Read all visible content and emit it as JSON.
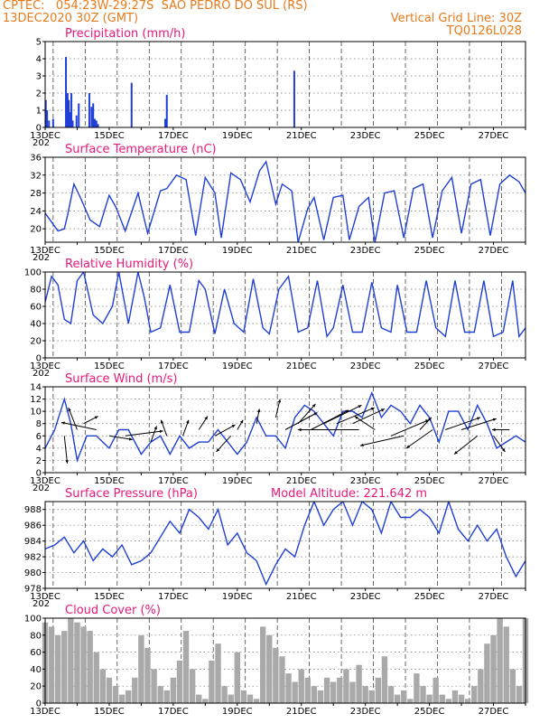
{
  "header": {
    "line1_left": "CPTEC:   054:23W-29:27S  SAO PEDRO DO SUL (RS)",
    "line2_left": "13DEC2020 30Z (GMT)",
    "line2_right": "Vertical Grid Line: 30Z",
    "line3_right": "TQ0126L028"
  },
  "colors": {
    "header": "#e87a1a",
    "title": "#e8197a",
    "series": "#1f3fd6",
    "cloud": "#a9a9a9"
  },
  "x_axis": {
    "ticks": [
      "13DEC",
      "15DEC",
      "17DEC",
      "19DEC",
      "21DEC",
      "23DEC",
      "25DEC",
      "27DEC"
    ],
    "start_day": 13,
    "end_day": 28,
    "cut_label": "202"
  },
  "chart_data": [
    {
      "type": "bar",
      "title": "Precipitation (mm/h)",
      "ylim": [
        0,
        5
      ],
      "yticks": [
        0,
        1,
        2,
        3,
        4,
        5
      ],
      "x": [
        13.02,
        13.06,
        13.12,
        13.25,
        13.65,
        13.7,
        13.74,
        13.78,
        13.82,
        13.86,
        13.98,
        14.05,
        14.38,
        14.45,
        14.5,
        14.55,
        14.6,
        14.65,
        15.7,
        16.75,
        16.8,
        20.78
      ],
      "values": [
        1.6,
        1.0,
        0.4,
        0.5,
        4.1,
        2.0,
        1.6,
        0.9,
        2.0,
        0.4,
        0.7,
        1.4,
        2.0,
        1.2,
        1.4,
        0.5,
        0.4,
        0.2,
        2.6,
        0.5,
        1.9,
        3.3
      ]
    },
    {
      "type": "line",
      "title": "Surface Temperature (nC)",
      "ylim": [
        17,
        36
      ],
      "yticks": [
        20,
        24,
        28,
        32,
        36
      ],
      "x": [
        13.0,
        13.2,
        13.4,
        13.6,
        13.7,
        13.9,
        14.1,
        14.4,
        14.7,
        15.0,
        15.2,
        15.5,
        15.9,
        16.2,
        16.6,
        16.8,
        17.1,
        17.4,
        17.7,
        18.0,
        18.3,
        18.5,
        18.8,
        19.1,
        19.4,
        19.7,
        19.9,
        20.2,
        20.4,
        20.7,
        20.9,
        21.2,
        21.4,
        21.7,
        22.0,
        22.3,
        22.5,
        22.8,
        23.1,
        23.3,
        23.6,
        23.9,
        24.2,
        24.5,
        24.8,
        25.1,
        25.4,
        25.7,
        26.0,
        26.3,
        26.6,
        26.9,
        27.2,
        27.5,
        27.8,
        28.0
      ],
      "values": [
        23.5,
        21.5,
        19.5,
        20.0,
        23.0,
        30.0,
        27.0,
        22.0,
        20.5,
        27.5,
        25.0,
        19.5,
        28.0,
        19.0,
        28.5,
        29.0,
        32.0,
        31.0,
        18.5,
        31.5,
        28.0,
        18.0,
        32.5,
        31.0,
        26.0,
        33.0,
        35.0,
        25.5,
        30.0,
        28.5,
        17.0,
        24.5,
        27.0,
        17.5,
        27.0,
        27.5,
        17.5,
        25.0,
        27.0,
        17.0,
        28.0,
        28.5,
        18.0,
        29.0,
        30.0,
        18.0,
        28.5,
        31.5,
        19.0,
        30.0,
        31.0,
        18.5,
        30.0,
        32.0,
        30.5,
        28.0
      ]
    },
    {
      "type": "line",
      "title": "Relative Humidity (%)",
      "ylim": [
        0,
        100
      ],
      "yticks": [
        0,
        20,
        40,
        60,
        80,
        100
      ],
      "x": [
        13.0,
        13.2,
        13.4,
        13.6,
        13.8,
        14.0,
        14.2,
        14.5,
        14.8,
        15.1,
        15.3,
        15.6,
        15.9,
        16.1,
        16.3,
        16.6,
        16.9,
        17.2,
        17.5,
        17.8,
        18.0,
        18.3,
        18.6,
        18.9,
        19.2,
        19.5,
        19.8,
        20.0,
        20.3,
        20.6,
        20.9,
        21.2,
        21.5,
        21.8,
        22.0,
        22.3,
        22.6,
        22.9,
        23.2,
        23.5,
        23.8,
        24.0,
        24.3,
        24.6,
        24.9,
        25.2,
        25.5,
        25.8,
        26.1,
        26.4,
        26.7,
        27.0,
        27.3,
        27.6,
        27.8,
        28.0
      ],
      "values": [
        65,
        95,
        85,
        45,
        40,
        90,
        100,
        50,
        40,
        60,
        100,
        40,
        100,
        70,
        30,
        35,
        85,
        30,
        30,
        90,
        80,
        28,
        80,
        40,
        30,
        92,
        35,
        28,
        80,
        95,
        30,
        35,
        90,
        25,
        35,
        85,
        30,
        30,
        88,
        35,
        30,
        85,
        30,
        30,
        90,
        35,
        25,
        90,
        30,
        30,
        90,
        25,
        30,
        90,
        25,
        35
      ]
    },
    {
      "type": "line",
      "title": "Surface Wind (m/s)",
      "ylim": [
        0,
        14
      ],
      "yticks": [
        0,
        2,
        4,
        6,
        8,
        10,
        12,
        14
      ],
      "x": [
        13.0,
        13.3,
        13.6,
        13.8,
        14.0,
        14.3,
        14.6,
        15.0,
        15.3,
        15.6,
        16.0,
        16.3,
        16.6,
        16.9,
        17.2,
        17.5,
        17.8,
        18.1,
        18.4,
        18.7,
        19.0,
        19.3,
        19.6,
        19.9,
        20.2,
        20.5,
        20.8,
        21.1,
        21.4,
        21.7,
        22.0,
        22.3,
        22.6,
        22.9,
        23.2,
        23.5,
        23.8,
        24.1,
        24.4,
        24.7,
        25.0,
        25.3,
        25.6,
        25.9,
        26.2,
        26.5,
        26.8,
        27.1,
        27.4,
        27.7,
        28.0
      ],
      "values": [
        4,
        7,
        12,
        8,
        2,
        6,
        6,
        4,
        7,
        7,
        3,
        5,
        6,
        3,
        6,
        4,
        5,
        5,
        7,
        5,
        3,
        5,
        9,
        6,
        6,
        4,
        9,
        11,
        10,
        8,
        6,
        10,
        10,
        9,
        13,
        9,
        11,
        10,
        8,
        11,
        9,
        5,
        10,
        10,
        7,
        11,
        8,
        4,
        5,
        6,
        5
      ],
      "vectors": [
        {
          "d": 13.6,
          "v": 6,
          "u": 0.2,
          "w": -4.5
        },
        {
          "d": 14.0,
          "v": 7,
          "u": -0.6,
          "w": 3.6
        },
        {
          "d": 14.2,
          "v": 8,
          "u": 1.0,
          "w": 1.2
        },
        {
          "d": 14.6,
          "v": 7,
          "u": -2.4,
          "w": 1.2
        },
        {
          "d": 15.0,
          "v": 6,
          "u": 1.6,
          "w": -0.6
        },
        {
          "d": 15.5,
          "v": 6,
          "u": 2.6,
          "w": 0.8
        },
        {
          "d": 16.3,
          "v": 5,
          "u": 0.4,
          "w": 2.6
        },
        {
          "d": 16.8,
          "v": 6,
          "u": -0.4,
          "w": 2.6
        },
        {
          "d": 17.3,
          "v": 6,
          "u": 0.4,
          "w": 2.6
        },
        {
          "d": 17.8,
          "v": 7,
          "u": 0.6,
          "w": 2.2
        },
        {
          "d": 18.3,
          "v": 6,
          "u": 1.4,
          "w": 1.8
        },
        {
          "d": 18.8,
          "v": 6,
          "u": -1.0,
          "w": -2.6
        },
        {
          "d": 19.0,
          "v": 7,
          "u": 0.4,
          "w": 1.6
        },
        {
          "d": 19.6,
          "v": 8,
          "u": 0.2,
          "w": 2.4
        },
        {
          "d": 20.2,
          "v": 9,
          "u": 0.3,
          "w": 3.0
        },
        {
          "d": 20.5,
          "v": 7,
          "u": 2.2,
          "w": 2.8
        },
        {
          "d": 20.9,
          "v": 8,
          "u": 1.2,
          "w": 3.2
        },
        {
          "d": 21.3,
          "v": 7,
          "u": 2.6,
          "w": 3.2
        },
        {
          "d": 21.7,
          "v": 8,
          "u": 2.6,
          "w": 3.0
        },
        {
          "d": 22.1,
          "v": 8,
          "u": 2.6,
          "w": 2.6
        },
        {
          "d": 22.6,
          "v": 8,
          "u": 2.2,
          "w": 2.4
        },
        {
          "d": 22.8,
          "v": 7,
          "u": -4.2,
          "w": 0.0
        },
        {
          "d": 23.3,
          "v": 7,
          "u": -1.4,
          "w": 2.2
        },
        {
          "d": 23.8,
          "v": 6,
          "u": 2.6,
          "w": 2.6
        },
        {
          "d": 24.2,
          "v": 6,
          "u": -3.0,
          "w": -1.6
        },
        {
          "d": 24.7,
          "v": 7,
          "u": 0.8,
          "w": 2.0
        },
        {
          "d": 25.1,
          "v": 7,
          "u": -1.8,
          "w": -3.0
        },
        {
          "d": 25.5,
          "v": 7,
          "u": 2.4,
          "w": 2.0
        },
        {
          "d": 26.0,
          "v": 7,
          "u": 2.4,
          "w": 1.8
        },
        {
          "d": 26.5,
          "v": 6,
          "u": -1.6,
          "w": -3.0
        },
        {
          "d": 27.0,
          "v": 6,
          "u": 0.8,
          "w": -2.6
        },
        {
          "d": 27.5,
          "v": 7,
          "u": -1.2,
          "w": 0.0
        }
      ]
    },
    {
      "type": "line",
      "title": "Surface Pressure (hPa)",
      "annotation": "Model Altitude: 221.642 m",
      "ylim": [
        978,
        989
      ],
      "yticks": [
        978,
        980,
        982,
        984,
        986,
        988
      ],
      "x": [
        13.0,
        13.3,
        13.6,
        13.9,
        14.2,
        14.5,
        14.8,
        15.1,
        15.4,
        15.7,
        16.0,
        16.3,
        16.6,
        16.9,
        17.2,
        17.5,
        17.8,
        18.1,
        18.4,
        18.7,
        19.0,
        19.3,
        19.6,
        19.9,
        20.2,
        20.5,
        20.8,
        21.1,
        21.4,
        21.7,
        22.0,
        22.3,
        22.6,
        22.9,
        23.2,
        23.5,
        23.8,
        24.1,
        24.4,
        24.7,
        25.0,
        25.3,
        25.6,
        25.9,
        26.2,
        26.5,
        26.8,
        27.1,
        27.4,
        27.7,
        28.0
      ],
      "values": [
        983,
        983.5,
        984.5,
        982.5,
        984,
        981.5,
        983,
        982,
        983.5,
        981,
        981.5,
        982.5,
        984.5,
        986.5,
        985,
        988,
        987,
        985.5,
        988,
        983.5,
        985,
        982.5,
        981.5,
        978.5,
        981,
        983,
        982,
        986,
        989,
        986,
        988,
        989,
        986,
        989,
        988,
        985,
        989,
        987,
        987,
        988,
        987,
        985,
        989,
        985.5,
        984,
        986,
        984,
        985.5,
        982,
        979.5,
        981.5
      ]
    },
    {
      "type": "bar",
      "title": "Cloud Cover (%)",
      "ylim": [
        0,
        100
      ],
      "yticks": [
        0,
        20,
        40,
        60,
        80,
        100
      ],
      "x": [
        13.0,
        13.2,
        13.4,
        13.6,
        13.8,
        14.0,
        14.2,
        14.4,
        14.6,
        14.8,
        15.0,
        15.2,
        15.4,
        15.6,
        15.8,
        16.0,
        16.2,
        16.4,
        16.6,
        16.8,
        17.0,
        17.2,
        17.4,
        17.6,
        17.8,
        18.0,
        18.2,
        18.4,
        18.6,
        18.8,
        19.0,
        19.2,
        19.4,
        19.6,
        19.8,
        20.0,
        20.2,
        20.4,
        20.6,
        20.8,
        21.0,
        21.2,
        21.4,
        21.6,
        21.8,
        22.0,
        22.2,
        22.4,
        22.6,
        22.8,
        23.0,
        23.2,
        23.4,
        23.6,
        23.8,
        24.0,
        24.2,
        24.4,
        24.6,
        24.8,
        25.0,
        25.2,
        25.4,
        25.6,
        25.8,
        26.0,
        26.2,
        26.4,
        26.6,
        26.8,
        27.0,
        27.2,
        27.4,
        27.6,
        27.8,
        28.0
      ],
      "values": [
        95,
        90,
        80,
        85,
        100,
        95,
        90,
        85,
        60,
        40,
        30,
        20,
        10,
        15,
        30,
        80,
        65,
        40,
        20,
        15,
        30,
        50,
        85,
        40,
        10,
        5,
        50,
        70,
        20,
        10,
        60,
        15,
        10,
        5,
        90,
        80,
        65,
        55,
        35,
        25,
        40,
        30,
        20,
        15,
        30,
        25,
        30,
        40,
        25,
        45,
        20,
        15,
        30,
        55,
        20,
        10,
        15,
        5,
        35,
        20,
        10,
        30,
        10,
        5,
        15,
        10,
        5,
        20,
        40,
        70,
        80,
        100,
        90,
        40,
        20,
        100
      ]
    }
  ]
}
